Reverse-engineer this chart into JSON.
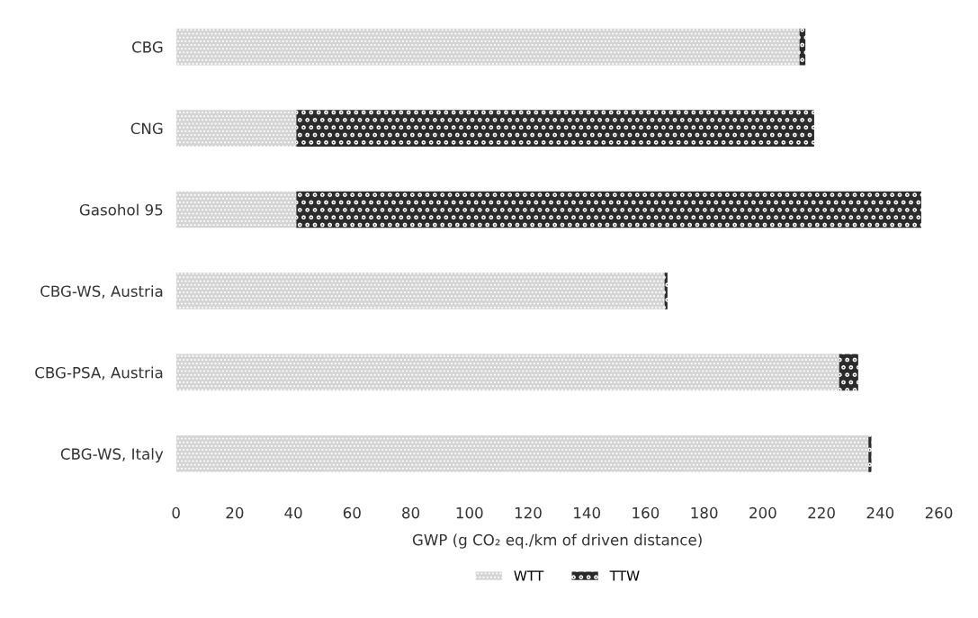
{
  "chart_data": {
    "type": "bar",
    "orientation": "horizontal",
    "stacked": true,
    "categories": [
      "CBG",
      "CNG",
      "Gasohol 95",
      "CBG-WS, Austria",
      "CBG-PSA, Austria",
      "CBG-WS, Italy"
    ],
    "series": [
      {
        "name": "WTT",
        "color": "#d4d4d4",
        "values": [
          212.5,
          41,
          41,
          166.5,
          226,
          236
        ]
      },
      {
        "name": "TTW",
        "color": "#2b2b2b",
        "values": [
          2,
          176.5,
          213,
          1,
          6.5,
          1
        ]
      }
    ],
    "xlabel": "GWP (g CO₂ eq./km of driven distance)",
    "xlim": [
      0,
      260
    ],
    "xticks": [
      0,
      20,
      40,
      60,
      80,
      100,
      120,
      140,
      160,
      180,
      200,
      220,
      240,
      260
    ],
    "grid": false,
    "legend": "bottom"
  }
}
